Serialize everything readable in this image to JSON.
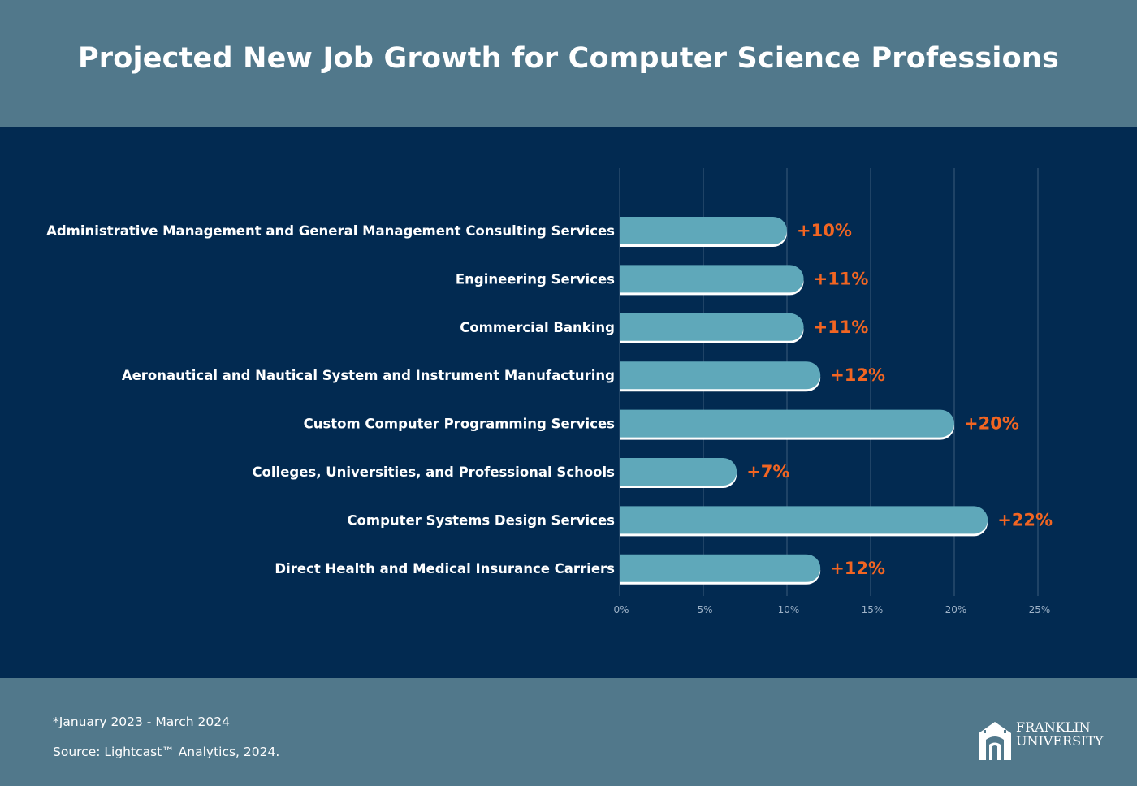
{
  "header": {
    "title": "Projected New Job Growth for Computer Science Professions"
  },
  "chart_data": {
    "type": "bar",
    "orientation": "horizontal",
    "categories": [
      "Administrative Management and General Management Consulting Services",
      "Engineering Services",
      "Commercial Banking",
      "Aeronautical and Nautical System and Instrument Manufacturing",
      "Custom Computer Programming Services",
      "Colleges, Universities, and Professional Schools",
      "Computer Systems Design Services",
      "Direct Health and Medical Insurance Carriers"
    ],
    "values": [
      10,
      11,
      11,
      12,
      20,
      7,
      22,
      12
    ],
    "data_labels": [
      "+10%",
      "+11%",
      "+11%",
      "+12%",
      "+20%",
      "+7%",
      "+22%",
      "+12%"
    ],
    "x_ticks": [
      0,
      5,
      10,
      15,
      20,
      25
    ],
    "x_tick_labels": [
      "0%",
      "5%",
      "10%",
      "15%",
      "20%",
      "25%"
    ],
    "xlim": [
      0,
      25
    ],
    "grid": true,
    "colors": {
      "bar": "#5fa8ba",
      "bar_shadow": "#ffffff",
      "data_label": "#f26522",
      "gridline": "#3c5c7c",
      "tick_label": "#9fb3c8",
      "category_label": "#ffffff"
    }
  },
  "footer": {
    "note": "*January 2023 - March 2024",
    "source": "Source: Lightcast™ Analytics, 2024.",
    "logo": {
      "icon": "franklin-arch-icon",
      "line1": "FRANKLIN",
      "line2": "UNIVERSITY"
    }
  }
}
